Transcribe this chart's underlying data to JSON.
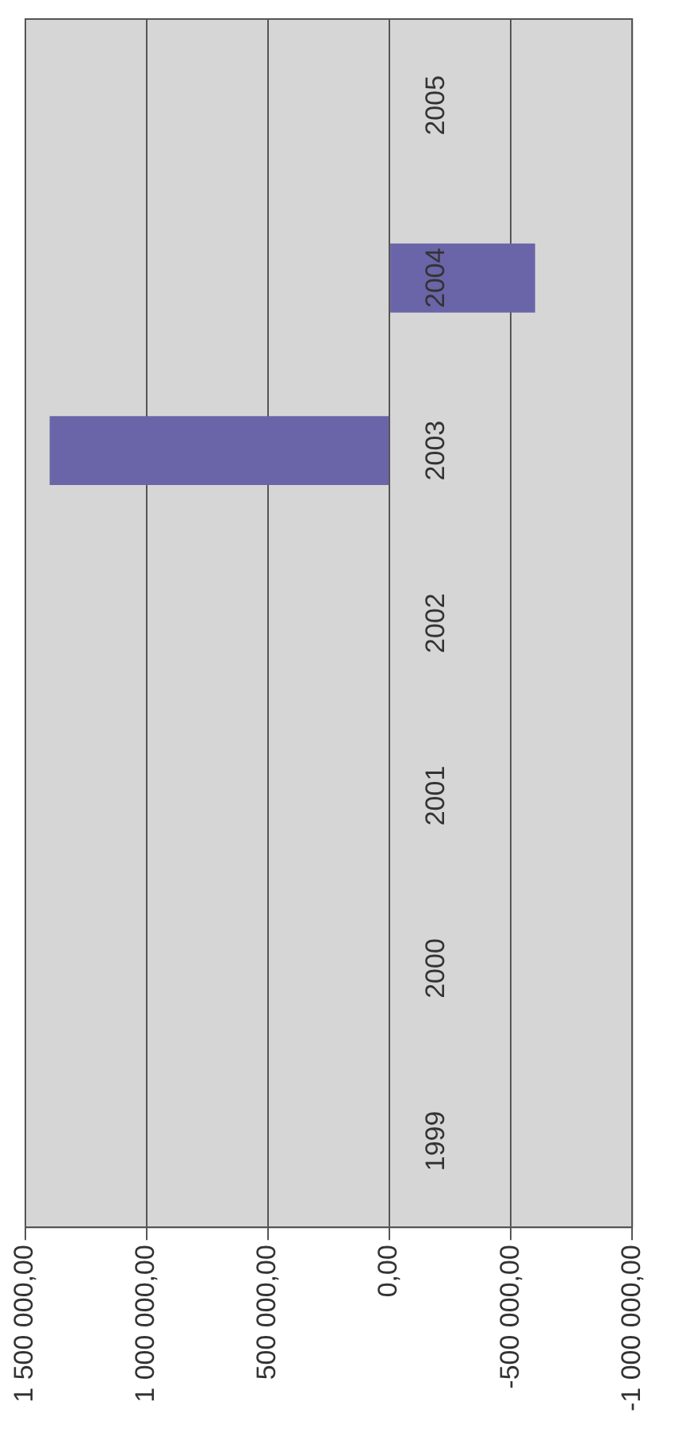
{
  "chart_data": {
    "type": "bar",
    "orientation": "horizontal",
    "categories": [
      "2005",
      "2004",
      "2003",
      "2002",
      "2001",
      "2000",
      "1999"
    ],
    "values": [
      null,
      -600000,
      1400000,
      null,
      null,
      null,
      null
    ],
    "color": "#6a64a8",
    "xlim": [
      1500000,
      -1000000
    ],
    "xticks": [
      {
        "value": 1500000,
        "label": "1 500 000,00"
      },
      {
        "value": 1000000,
        "label": "1 000 000,00"
      },
      {
        "value": 500000,
        "label": "500 000,00"
      },
      {
        "value": 0,
        "label": "0,00"
      },
      {
        "value": -500000,
        "label": "-500 000,00"
      },
      {
        "value": -1000000,
        "label": "-1 000 000,00"
      }
    ],
    "grid": "x",
    "legend": false
  }
}
